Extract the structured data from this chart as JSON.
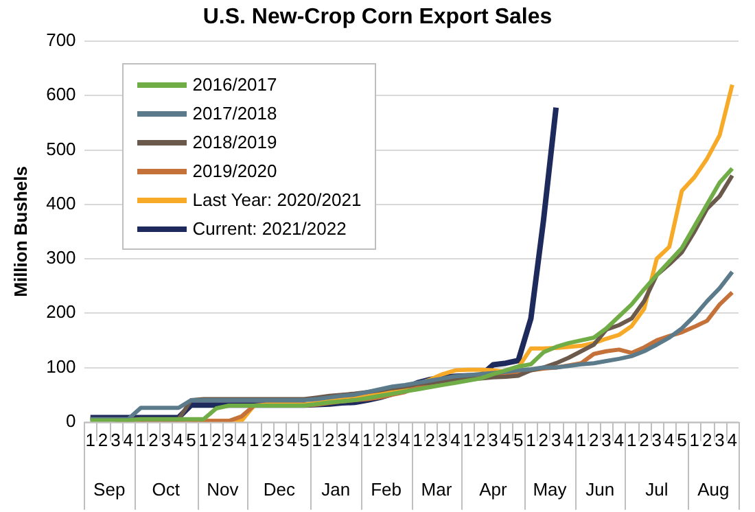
{
  "chart_data": {
    "type": "line",
    "title": "U.S. New-Crop Corn Export Sales",
    "ylabel": "Million Bushels",
    "categories": [
      "1",
      "2",
      "3",
      "4",
      "1",
      "2",
      "3",
      "4",
      "5",
      "1",
      "2",
      "3",
      "4",
      "1",
      "2",
      "3",
      "4",
      "5",
      "1",
      "2",
      "3",
      "4",
      "1",
      "2",
      "3",
      "4",
      "1",
      "2",
      "3",
      "4",
      "1",
      "2",
      "3",
      "4",
      "5",
      "1",
      "2",
      "3",
      "4",
      "1",
      "2",
      "3",
      "4",
      "1",
      "2",
      "3",
      "4",
      "5",
      "1",
      "2",
      "3",
      "4"
    ],
    "annotations": [
      "Sep",
      "Oct",
      "Nov",
      "Dec",
      "Jan",
      "Feb",
      "Mar",
      "Apr",
      "May",
      "Jun",
      "Jul",
      "Aug"
    ],
    "series": [
      {
        "name": "2016/2017",
        "color": "#70ad47",
        "values": [
          3,
          3,
          3,
          3,
          5,
          5,
          5,
          5,
          5,
          5,
          25,
          30,
          30,
          30,
          30,
          30,
          30,
          30,
          33,
          36,
          38,
          40,
          44,
          48,
          52,
          56,
          60,
          64,
          68,
          72,
          76,
          80,
          88,
          95,
          102,
          106,
          128,
          138,
          145,
          150,
          155,
          172,
          194,
          216,
          244,
          270,
          295,
          320,
          360,
          400,
          440,
          466
        ]
      },
      {
        "name": "2017/2018",
        "color": "#5b7b8b",
        "values": [
          5,
          5,
          5,
          5,
          26,
          26,
          26,
          26,
          40,
          40,
          40,
          40,
          40,
          40,
          40,
          40,
          40,
          40,
          42,
          45,
          48,
          50,
          55,
          60,
          65,
          68,
          72,
          76,
          80,
          84,
          86,
          88,
          90,
          92,
          95,
          97,
          100,
          100,
          103,
          106,
          108,
          112,
          116,
          121,
          130,
          142,
          155,
          172,
          195,
          222,
          246,
          276
        ]
      },
      {
        "name": "2018/2019",
        "color": "#6b5a4c",
        "values": [
          5,
          5,
          5,
          5,
          5,
          5,
          5,
          5,
          40,
          42,
          42,
          42,
          42,
          42,
          42,
          42,
          42,
          42,
          45,
          48,
          50,
          52,
          55,
          58,
          62,
          65,
          70,
          72,
          75,
          78,
          80,
          80,
          82,
          83,
          85,
          95,
          100,
          108,
          118,
          130,
          142,
          170,
          178,
          190,
          222,
          270,
          290,
          312,
          350,
          392,
          415,
          453
        ]
      },
      {
        "name": "2019/2020",
        "color": "#c5713a",
        "values": [
          null,
          null,
          2,
          2,
          2,
          2,
          2,
          2,
          2,
          2,
          2,
          2,
          10,
          30,
          30,
          30,
          30,
          30,
          32,
          35,
          38,
          40,
          42,
          45,
          50,
          55,
          65,
          70,
          75,
          78,
          80,
          82,
          84,
          86,
          88,
          95,
          98,
          100,
          104,
          108,
          125,
          130,
          133,
          127,
          137,
          150,
          158,
          165,
          175,
          186,
          216,
          238
        ]
      },
      {
        "name": "Last Year: 2020/2021",
        "color": "#f7a928",
        "values": [
          null,
          null,
          null,
          null,
          null,
          null,
          null,
          null,
          2,
          2,
          2,
          2,
          2,
          30,
          32,
          32,
          32,
          32,
          35,
          38,
          42,
          45,
          48,
          52,
          58,
          62,
          70,
          78,
          88,
          95,
          96,
          96,
          95,
          92,
          100,
          135,
          135,
          136,
          138,
          140,
          145,
          153,
          160,
          176,
          208,
          300,
          322,
          425,
          450,
          484,
          527,
          620
        ]
      },
      {
        "name": "Current: 2021/2022",
        "color": "#1f2a5c",
        "values": [
          8,
          8,
          8,
          8,
          8,
          8,
          8,
          8,
          31,
          31,
          31,
          31,
          31,
          31,
          31,
          31,
          31,
          31,
          32,
          33,
          35,
          36,
          40,
          45,
          52,
          62,
          72,
          78,
          82,
          84,
          85,
          85,
          105,
          108,
          113,
          190,
          370,
          578,
          null,
          null,
          null,
          null,
          null,
          null,
          null,
          null,
          null,
          null,
          null,
          null,
          null,
          null
        ]
      }
    ],
    "ylim": [
      0,
      700
    ],
    "yticks": [
      0,
      100,
      200,
      300,
      400,
      500,
      600,
      700
    ],
    "grid": "y",
    "legend": "top left",
    "marker": "none"
  }
}
